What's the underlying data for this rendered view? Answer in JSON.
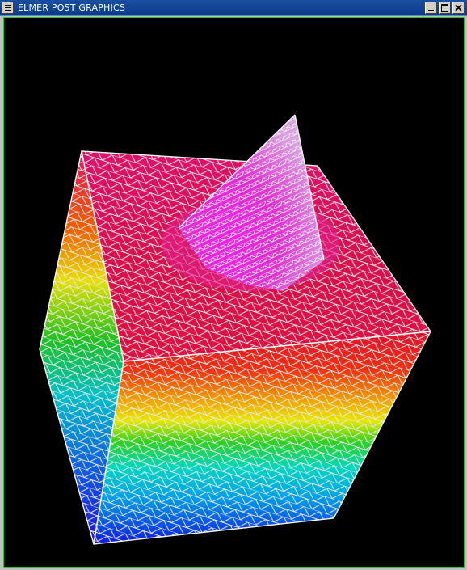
{
  "window": {
    "title": "ELMER POST GRAPHICS",
    "controls": [
      "minimize",
      "maximize",
      "close"
    ],
    "menu_icon": "window-menu-icon"
  },
  "scene": {
    "background_color": "#000000",
    "mesh_color": "#e8e8e8",
    "colormap": [
      "#2010e0",
      "#00e0e0",
      "#20d020",
      "#f0f000",
      "#f04000",
      "#e0104a",
      "#f020f0"
    ],
    "objects": [
      "cube-mesh",
      "cone-mesh"
    ]
  }
}
